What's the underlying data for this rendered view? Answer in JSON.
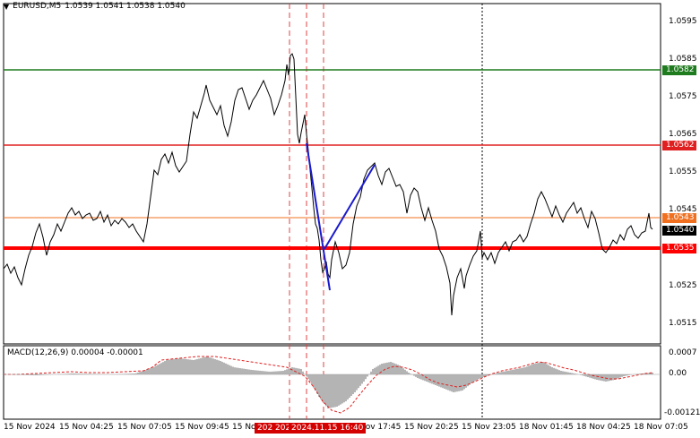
{
  "header": {
    "symbol_tf": "EURUSD,M5",
    "ohlc": "1.0539 1.0541 1.0538 1.0540",
    "dropdown_icon": "triangle-down-icon"
  },
  "macd": {
    "title": "MACD(12,26,9) 0.00004 -0.00001",
    "ticks": [
      "0.0007",
      "0.00",
      "-0.00121"
    ]
  },
  "price_axis": {
    "ticks": [
      "1.0595",
      "1.0585",
      "1.0575",
      "1.0565",
      "1.0555",
      "1.0545",
      "1.0525",
      "1.0515"
    ]
  },
  "levels": [
    {
      "price": "1.0582",
      "color": "#1e7b1e"
    },
    {
      "price": "1.0562",
      "color": "#e02020"
    },
    {
      "price": "1.0543",
      "color": "#f07020"
    },
    {
      "price": "1.0540",
      "color": "#000000"
    },
    {
      "price": "1.0535",
      "color": "#ff0000"
    }
  ],
  "time_axis": {
    "ticks": [
      "15 Nov 2024",
      "15 Nov 04:25",
      "15 Nov 07:05",
      "15 Nov 09:45",
      "15 Nov",
      "Nov 17:45",
      "15 Nov 20:25",
      "15 Nov 23:05",
      "18 Nov 01:45",
      "18 Nov 04:25",
      "18 Nov 07:05"
    ],
    "highlight_a": "202 202",
    "highlight_b": "2024.11.15 16:40"
  },
  "colors": {
    "price_line": "#000000",
    "trend_line": "#1a1acd",
    "macd_hist": "#b4b4b4",
    "macd_signal": "#e02020",
    "grid_vline": "#000000",
    "event_vline": "#e04040"
  }
}
